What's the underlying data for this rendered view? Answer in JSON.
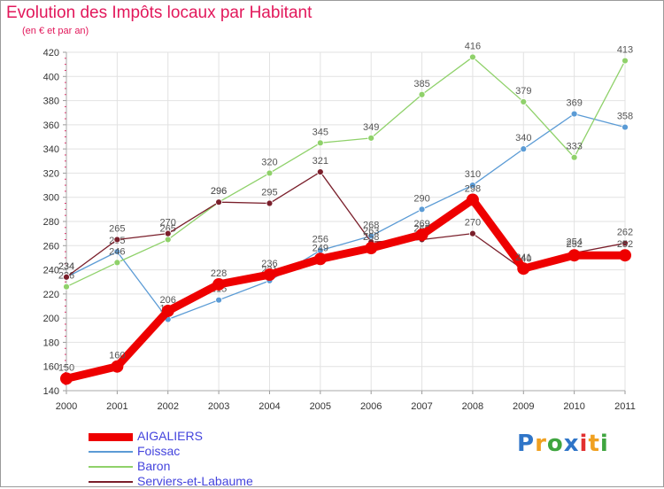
{
  "chart_data": {
    "type": "line",
    "title": "Evolution des Impôts locaux par Habitant",
    "subtitle": "(en € et par an)",
    "x": [
      "2000",
      "2001",
      "2002",
      "2003",
      "2004",
      "2005",
      "2006",
      "2007",
      "2008",
      "2009",
      "2010",
      "2011"
    ],
    "ylim": [
      140,
      420
    ],
    "yticks": [
      140,
      160,
      180,
      200,
      220,
      240,
      260,
      280,
      300,
      320,
      340,
      360,
      380,
      400,
      420
    ],
    "grid": true,
    "series": [
      {
        "name": "Foissac",
        "color": "#5b9bd5",
        "values": [
          234,
          255,
          199,
          215,
          231,
          256,
          268,
          290,
          310,
          340,
          369,
          358
        ]
      },
      {
        "name": "Baron",
        "color": "#8fd16a",
        "values": [
          226,
          246,
          265,
          296,
          320,
          345,
          349,
          385,
          416,
          379,
          333,
          413
        ]
      },
      {
        "name": "Serviers-et-Labaume",
        "color": "#7a1f2b",
        "values": [
          234,
          265,
          270,
          296,
          295,
          321,
          263,
          265,
          270,
          240,
          254,
          262
        ]
      },
      {
        "name": "AIGALIERS",
        "color": "#ee0000",
        "values": [
          150,
          160,
          206,
          228,
          236,
          249,
          258,
          269,
          298,
          241,
          252,
          252
        ]
      }
    ],
    "legend_order": [
      "AIGALIERS",
      "Foissac",
      "Baron",
      "Serviers-et-Labaume"
    ]
  },
  "logo": {
    "text": "Proxiti",
    "letters": [
      "P",
      "r",
      "o",
      "x",
      "i",
      "t",
      "i"
    ],
    "colors": [
      "#2f75c8",
      "#f0a020",
      "#3fa53f",
      "#2f75c8",
      "#e23030",
      "#f0a020",
      "#3fa53f"
    ]
  }
}
